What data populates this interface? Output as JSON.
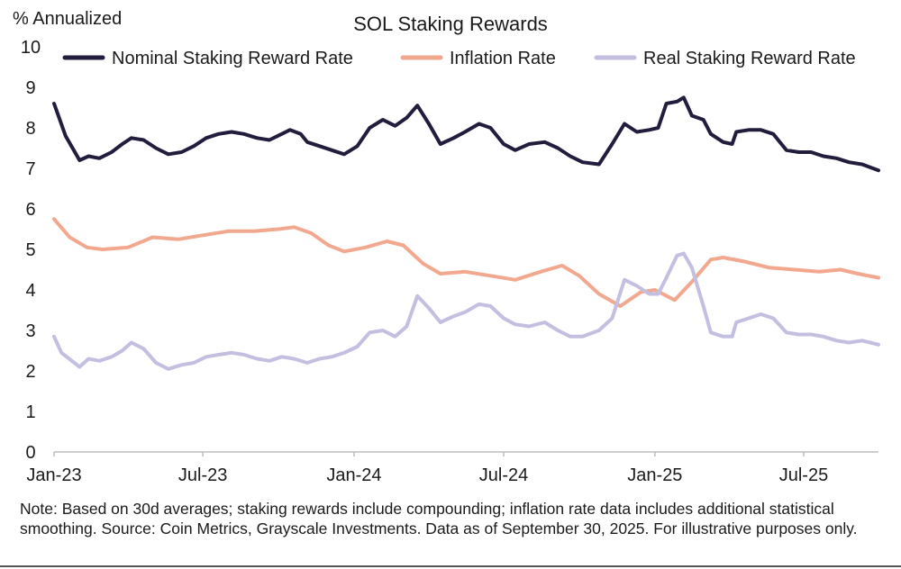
{
  "chart_data": {
    "type": "line",
    "title": "SOL Staking Rewards",
    "ylabel": "% Annualized",
    "xlabel": "",
    "ylim": [
      0,
      10
    ],
    "yticks": [
      "0",
      "1",
      "2",
      "3",
      "4",
      "5",
      "6",
      "7",
      "8",
      "9",
      "10"
    ],
    "xlim": [
      "2023-01-01",
      "2025-09-30"
    ],
    "xticks": [
      {
        "label": "Jan-23",
        "date": "2023-01-01"
      },
      {
        "label": "Jul-23",
        "date": "2023-07-01"
      },
      {
        "label": "Jan-24",
        "date": "2024-01-01"
      },
      {
        "label": "Jul-24",
        "date": "2024-07-01"
      },
      {
        "label": "Jan-25",
        "date": "2025-01-01"
      },
      {
        "label": "Jul-25",
        "date": "2025-07-01"
      }
    ],
    "grid": false,
    "legend_position": "top",
    "series": [
      {
        "name": "Nominal Staking Reward Rate",
        "color": "#221d3d",
        "points": [
          [
            "2023-01-01",
            8.6
          ],
          [
            "2023-01-15",
            7.8
          ],
          [
            "2023-02-01",
            7.2
          ],
          [
            "2023-02-12",
            7.3
          ],
          [
            "2023-02-25",
            7.25
          ],
          [
            "2023-03-12",
            7.4
          ],
          [
            "2023-03-25",
            7.6
          ],
          [
            "2023-04-05",
            7.75
          ],
          [
            "2023-04-20",
            7.7
          ],
          [
            "2023-05-05",
            7.5
          ],
          [
            "2023-05-20",
            7.35
          ],
          [
            "2023-06-05",
            7.4
          ],
          [
            "2023-06-20",
            7.55
          ],
          [
            "2023-07-05",
            7.75
          ],
          [
            "2023-07-20",
            7.85
          ],
          [
            "2023-08-05",
            7.9
          ],
          [
            "2023-08-20",
            7.85
          ],
          [
            "2023-09-05",
            7.75
          ],
          [
            "2023-09-20",
            7.7
          ],
          [
            "2023-10-05",
            7.85
          ],
          [
            "2023-10-15",
            7.95
          ],
          [
            "2023-10-28",
            7.85
          ],
          [
            "2023-11-05",
            7.65
          ],
          [
            "2023-11-20",
            7.55
          ],
          [
            "2023-12-05",
            7.45
          ],
          [
            "2023-12-20",
            7.35
          ],
          [
            "2024-01-05",
            7.55
          ],
          [
            "2024-01-20",
            8.0
          ],
          [
            "2024-02-05",
            8.2
          ],
          [
            "2024-02-20",
            8.05
          ],
          [
            "2024-03-05",
            8.25
          ],
          [
            "2024-03-18",
            8.55
          ],
          [
            "2024-04-01",
            8.1
          ],
          [
            "2024-04-15",
            7.6
          ],
          [
            "2024-05-01",
            7.75
          ],
          [
            "2024-05-15",
            7.9
          ],
          [
            "2024-06-01",
            8.1
          ],
          [
            "2024-06-15",
            8.0
          ],
          [
            "2024-07-01",
            7.6
          ],
          [
            "2024-07-15",
            7.45
          ],
          [
            "2024-08-01",
            7.6
          ],
          [
            "2024-08-20",
            7.65
          ],
          [
            "2024-09-05",
            7.5
          ],
          [
            "2024-09-20",
            7.3
          ],
          [
            "2024-10-05",
            7.15
          ],
          [
            "2024-10-25",
            7.1
          ],
          [
            "2024-11-10",
            7.6
          ],
          [
            "2024-11-25",
            8.1
          ],
          [
            "2024-12-10",
            7.9
          ],
          [
            "2024-12-25",
            7.95
          ],
          [
            "2025-01-05",
            8.0
          ],
          [
            "2025-01-15",
            8.6
          ],
          [
            "2025-01-28",
            8.65
          ],
          [
            "2025-02-05",
            8.75
          ],
          [
            "2025-02-15",
            8.3
          ],
          [
            "2025-03-01",
            8.2
          ],
          [
            "2025-03-10",
            7.85
          ],
          [
            "2025-03-25",
            7.65
          ],
          [
            "2025-04-05",
            7.6
          ],
          [
            "2025-04-10",
            7.9
          ],
          [
            "2025-04-25",
            7.95
          ],
          [
            "2025-05-10",
            7.95
          ],
          [
            "2025-05-25",
            7.85
          ],
          [
            "2025-06-10",
            7.45
          ],
          [
            "2025-06-25",
            7.4
          ],
          [
            "2025-07-10",
            7.4
          ],
          [
            "2025-07-25",
            7.3
          ],
          [
            "2025-08-10",
            7.25
          ],
          [
            "2025-08-25",
            7.15
          ],
          [
            "2025-09-10",
            7.1
          ],
          [
            "2025-09-30",
            6.95
          ]
        ]
      },
      {
        "name": "Inflation Rate",
        "color": "#f2a88f",
        "points": [
          [
            "2023-01-01",
            5.75
          ],
          [
            "2023-01-20",
            5.3
          ],
          [
            "2023-02-10",
            5.05
          ],
          [
            "2023-03-01",
            5.0
          ],
          [
            "2023-04-01",
            5.05
          ],
          [
            "2023-05-01",
            5.3
          ],
          [
            "2023-06-01",
            5.25
          ],
          [
            "2023-07-01",
            5.35
          ],
          [
            "2023-08-01",
            5.45
          ],
          [
            "2023-09-01",
            5.45
          ],
          [
            "2023-10-01",
            5.5
          ],
          [
            "2023-10-20",
            5.55
          ],
          [
            "2023-11-10",
            5.4
          ],
          [
            "2023-12-01",
            5.1
          ],
          [
            "2023-12-20",
            4.95
          ],
          [
            "2024-01-15",
            5.05
          ],
          [
            "2024-02-10",
            5.2
          ],
          [
            "2024-03-01",
            5.1
          ],
          [
            "2024-03-25",
            4.65
          ],
          [
            "2024-04-15",
            4.4
          ],
          [
            "2024-05-15",
            4.45
          ],
          [
            "2024-06-15",
            4.35
          ],
          [
            "2024-07-15",
            4.25
          ],
          [
            "2024-08-15",
            4.45
          ],
          [
            "2024-09-10",
            4.6
          ],
          [
            "2024-10-01",
            4.35
          ],
          [
            "2024-10-25",
            3.9
          ],
          [
            "2024-11-20",
            3.6
          ],
          [
            "2024-12-15",
            3.95
          ],
          [
            "2025-01-01",
            4.0
          ],
          [
            "2025-01-25",
            3.75
          ],
          [
            "2025-02-15",
            4.2
          ],
          [
            "2025-03-10",
            4.75
          ],
          [
            "2025-03-25",
            4.8
          ],
          [
            "2025-04-20",
            4.7
          ],
          [
            "2025-05-20",
            4.55
          ],
          [
            "2025-06-20",
            4.5
          ],
          [
            "2025-07-20",
            4.45
          ],
          [
            "2025-08-15",
            4.5
          ],
          [
            "2025-09-05",
            4.4
          ],
          [
            "2025-09-30",
            4.3
          ]
        ]
      },
      {
        "name": "Real Staking Reward Rate",
        "color": "#c3bfe0",
        "points": [
          [
            "2023-01-01",
            2.85
          ],
          [
            "2023-01-10",
            2.45
          ],
          [
            "2023-02-01",
            2.1
          ],
          [
            "2023-02-12",
            2.3
          ],
          [
            "2023-02-25",
            2.25
          ],
          [
            "2023-03-12",
            2.35
          ],
          [
            "2023-03-25",
            2.5
          ],
          [
            "2023-04-05",
            2.7
          ],
          [
            "2023-04-20",
            2.55
          ],
          [
            "2023-05-05",
            2.2
          ],
          [
            "2023-05-20",
            2.05
          ],
          [
            "2023-06-05",
            2.15
          ],
          [
            "2023-06-20",
            2.2
          ],
          [
            "2023-07-05",
            2.35
          ],
          [
            "2023-07-20",
            2.4
          ],
          [
            "2023-08-05",
            2.45
          ],
          [
            "2023-08-20",
            2.4
          ],
          [
            "2023-09-05",
            2.3
          ],
          [
            "2023-09-20",
            2.25
          ],
          [
            "2023-10-05",
            2.35
          ],
          [
            "2023-10-20",
            2.3
          ],
          [
            "2023-11-05",
            2.2
          ],
          [
            "2023-11-20",
            2.3
          ],
          [
            "2023-12-05",
            2.35
          ],
          [
            "2023-12-20",
            2.45
          ],
          [
            "2024-01-05",
            2.6
          ],
          [
            "2024-01-20",
            2.95
          ],
          [
            "2024-02-05",
            3.0
          ],
          [
            "2024-02-20",
            2.85
          ],
          [
            "2024-03-05",
            3.1
          ],
          [
            "2024-03-18",
            3.85
          ],
          [
            "2024-04-01",
            3.55
          ],
          [
            "2024-04-15",
            3.2
          ],
          [
            "2024-05-01",
            3.35
          ],
          [
            "2024-05-15",
            3.45
          ],
          [
            "2024-06-01",
            3.65
          ],
          [
            "2024-06-15",
            3.6
          ],
          [
            "2024-07-01",
            3.3
          ],
          [
            "2024-07-15",
            3.15
          ],
          [
            "2024-08-01",
            3.1
          ],
          [
            "2024-08-20",
            3.2
          ],
          [
            "2024-09-05",
            3.0
          ],
          [
            "2024-09-20",
            2.85
          ],
          [
            "2024-10-05",
            2.85
          ],
          [
            "2024-10-25",
            3.0
          ],
          [
            "2024-11-10",
            3.3
          ],
          [
            "2024-11-25",
            4.25
          ],
          [
            "2024-12-10",
            4.1
          ],
          [
            "2024-12-25",
            3.9
          ],
          [
            "2025-01-05",
            3.9
          ],
          [
            "2025-01-15",
            4.3
          ],
          [
            "2025-01-28",
            4.85
          ],
          [
            "2025-02-05",
            4.9
          ],
          [
            "2025-02-15",
            4.55
          ],
          [
            "2025-03-01",
            3.6
          ],
          [
            "2025-03-10",
            2.95
          ],
          [
            "2025-03-25",
            2.85
          ],
          [
            "2025-04-05",
            2.85
          ],
          [
            "2025-04-10",
            3.2
          ],
          [
            "2025-04-25",
            3.3
          ],
          [
            "2025-05-10",
            3.4
          ],
          [
            "2025-05-25",
            3.3
          ],
          [
            "2025-06-10",
            2.95
          ],
          [
            "2025-06-25",
            2.9
          ],
          [
            "2025-07-10",
            2.9
          ],
          [
            "2025-07-25",
            2.85
          ],
          [
            "2025-08-10",
            2.75
          ],
          [
            "2025-08-25",
            2.7
          ],
          [
            "2025-09-10",
            2.75
          ],
          [
            "2025-09-30",
            2.65
          ]
        ]
      }
    ]
  },
  "note": "Note: Based on 30d averages; staking rewards include compounding; inflation rate data includes additional statistical smoothing. Source: Coin Metrics, Grayscale Investments. Data as of September 30, 2025. For illustrative purposes only."
}
